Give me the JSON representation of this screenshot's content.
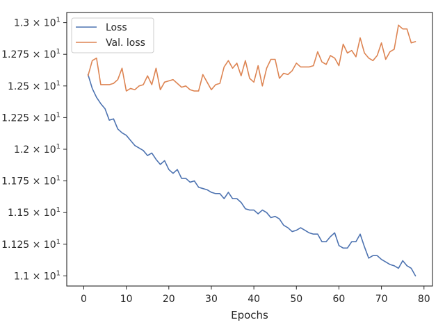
{
  "chart_data": {
    "type": "line",
    "xlabel": "Epochs",
    "ylabel": "",
    "title": "",
    "xlim": [
      -4,
      82
    ],
    "ylim": [
      10.92,
      13.08
    ],
    "grid": false,
    "legend_position": "top-left",
    "x_ticks": [
      0,
      10,
      20,
      30,
      40,
      50,
      60,
      70,
      80
    ],
    "x_tick_labels": [
      "0",
      "10",
      "20",
      "30",
      "40",
      "50",
      "60",
      "70",
      "80"
    ],
    "y_ticks": [
      11.0,
      11.25,
      11.5,
      11.75,
      12.0,
      12.25,
      12.5,
      12.75,
      13.0
    ],
    "y_tick_labels": [
      {
        "mant": "1.1",
        "exp": "1"
      },
      {
        "mant": "1.125",
        "exp": "1"
      },
      {
        "mant": "1.15",
        "exp": "1"
      },
      {
        "mant": "1.175",
        "exp": "1"
      },
      {
        "mant": "1.2",
        "exp": "1"
      },
      {
        "mant": "1.225",
        "exp": "1"
      },
      {
        "mant": "1.25",
        "exp": "1"
      },
      {
        "mant": "1.275",
        "exp": "1"
      },
      {
        "mant": "1.3",
        "exp": "1"
      }
    ],
    "y_tick_base": "× 10",
    "x": [
      1,
      2,
      3,
      4,
      5,
      6,
      7,
      8,
      9,
      10,
      11,
      12,
      13,
      14,
      15,
      16,
      17,
      18,
      19,
      20,
      21,
      22,
      23,
      24,
      25,
      26,
      27,
      28,
      29,
      30,
      31,
      32,
      33,
      34,
      35,
      36,
      37,
      38,
      39,
      40,
      41,
      42,
      43,
      44,
      45,
      46,
      47,
      48,
      49,
      50,
      51,
      52,
      53,
      54,
      55,
      56,
      57,
      58,
      59,
      60,
      61,
      62,
      63,
      64,
      65,
      66,
      67,
      68,
      69,
      70,
      71,
      72,
      73,
      74,
      75,
      76,
      77,
      78
    ],
    "series": [
      {
        "name": "Loss",
        "color": "#4c72b0",
        "values": [
          12.59,
          12.48,
          12.41,
          12.36,
          12.32,
          12.23,
          12.24,
          12.16,
          12.13,
          12.11,
          12.07,
          12.03,
          12.01,
          11.99,
          11.95,
          11.97,
          11.92,
          11.88,
          11.91,
          11.84,
          11.81,
          11.84,
          11.77,
          11.77,
          11.74,
          11.75,
          11.7,
          11.69,
          11.68,
          11.66,
          11.65,
          11.65,
          11.61,
          11.66,
          11.61,
          11.61,
          11.58,
          11.53,
          11.52,
          11.52,
          11.49,
          11.52,
          11.5,
          11.46,
          11.47,
          11.45,
          11.4,
          11.38,
          11.35,
          11.36,
          11.38,
          11.36,
          11.34,
          11.33,
          11.33,
          11.27,
          11.27,
          11.31,
          11.34,
          11.24,
          11.22,
          11.22,
          11.27,
          11.27,
          11.33,
          11.23,
          11.14,
          11.16,
          11.16,
          11.13,
          11.11,
          11.09,
          11.08,
          11.06,
          11.12,
          11.08,
          11.06,
          11.0
        ]
      },
      {
        "name": "Val. loss",
        "color": "#dd8452",
        "values": [
          12.58,
          12.7,
          12.72,
          12.51,
          12.51,
          12.51,
          12.52,
          12.55,
          12.64,
          12.46,
          12.48,
          12.47,
          12.5,
          12.51,
          12.58,
          12.51,
          12.64,
          12.47,
          12.53,
          12.54,
          12.55,
          12.52,
          12.49,
          12.5,
          12.47,
          12.46,
          12.46,
          12.59,
          12.53,
          12.47,
          12.51,
          12.52,
          12.65,
          12.7,
          12.64,
          12.68,
          12.58,
          12.7,
          12.56,
          12.53,
          12.66,
          12.5,
          12.64,
          12.71,
          12.71,
          12.56,
          12.6,
          12.59,
          12.62,
          12.68,
          12.65,
          12.65,
          12.65,
          12.66,
          12.77,
          12.69,
          12.67,
          12.74,
          12.72,
          12.66,
          12.83,
          12.76,
          12.78,
          12.73,
          12.88,
          12.76,
          12.72,
          12.7,
          12.74,
          12.84,
          12.71,
          12.77,
          12.79,
          12.98,
          12.95,
          12.95,
          12.84,
          12.85
        ]
      }
    ]
  }
}
